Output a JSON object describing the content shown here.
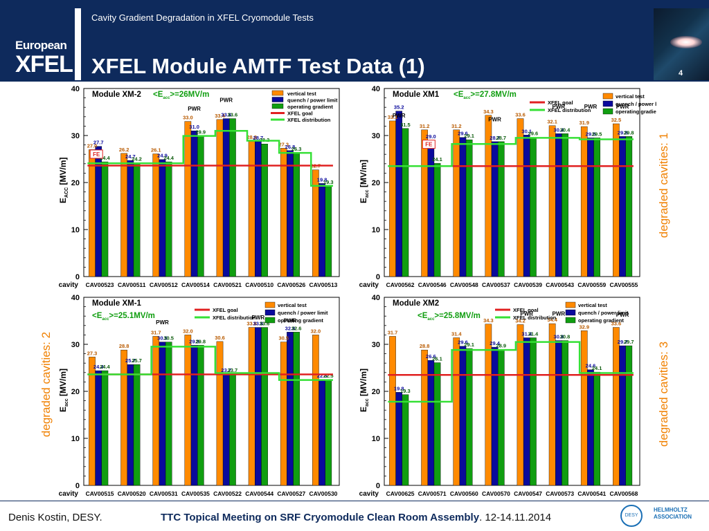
{
  "header": {
    "subtitle": "Cavity Gradient Degradation in XFEL Cryomodule Tests",
    "title": "XFEL Module AMTF Test Data (1)",
    "page_number": "4",
    "logo_top": "European",
    "logo_main": "XFEL"
  },
  "footer": {
    "author": "Denis Kostin, DESY.",
    "event_bold": "TTC Topical Meeting on SRF Cryomodule Clean Room Assembly",
    "event_rest": ". 12-14.11.2014",
    "desy_logo": "DESY",
    "helmholtz_line1": "HELMHOLTZ",
    "helmholtz_line2": "ASSOCIATION"
  },
  "side_labels": {
    "xm1": "degraded cavities: 1",
    "xm_1": "degraded cavities: 2",
    "xm2": "degraded cavities: 3"
  },
  "colors": {
    "vertical": "#ff8a00",
    "quench": "#0a0a9c",
    "operating": "#109e10",
    "goal": "#e02020",
    "distribution": "#35e035",
    "accent": "#f08000",
    "header_bg": "#0e2a5c"
  },
  "legend_labels": {
    "vertical": "vertical test",
    "quench": "quench / power limit",
    "operating": "operating gradient",
    "goal": "XFEL goal",
    "distribution": "XFEL distribution"
  },
  "chart_data": [
    {
      "type": "bar",
      "module": "Module XM-2",
      "eacc": "<E_acc>=26MV/m",
      "ylabel": "E_ACC [MV/m]",
      "xlabel": "cavity",
      "ylim": [
        0,
        40
      ],
      "yticks": [
        0,
        10,
        20,
        30,
        40
      ],
      "categories": [
        "CAV00523",
        "CAV00511",
        "CAV00512",
        "CAV00514",
        "CAV00521",
        "CAV00510",
        "CAV00526",
        "CAV00513"
      ],
      "series": [
        {
          "name": "vertical test",
          "key": "vertical",
          "values": [
            27.0,
            26.2,
            26.1,
            33.0,
            33.4,
            28.8,
            27.3,
            22.7
          ]
        },
        {
          "name": "quench / power limit",
          "key": "quench",
          "values": [
            27.7,
            24.7,
            24.9,
            31.0,
            33.6,
            28.7,
            26.8,
            19.8
          ]
        },
        {
          "name": "operating gradient",
          "key": "operating",
          "values": [
            24.4,
            24.2,
            24.4,
            29.9,
            33.6,
            28.2,
            26.3,
            19.3
          ]
        }
      ],
      "distribution": [
        24.1,
        24.1,
        24.1,
        29.9,
        31.0,
        28.9,
        26.3,
        19.3
      ],
      "goal": 23.6,
      "annotations": [
        {
          "cat": 0,
          "text": "FE",
          "box": true,
          "y": 25.6
        },
        {
          "cat": 3,
          "text": "PWR",
          "y": 35.3
        },
        {
          "cat": 4,
          "text": "PWR",
          "y": 37.1
        }
      ],
      "legend_keys": [
        "vertical",
        "quench",
        "operating",
        "goal",
        "distribution"
      ]
    },
    {
      "type": "bar",
      "module": "Module XM1",
      "eacc": "<E_acc>=27.8MV/m",
      "ylabel": "E_acc [MV/m]",
      "xlabel": "cavity",
      "ylim": [
        0,
        40
      ],
      "yticks": [
        0,
        10,
        20,
        30,
        40
      ],
      "categories": [
        "CAV00562",
        "CAV00546",
        "CAV00548",
        "CAV00537",
        "CAV00539",
        "CAV00543",
        "CAV00559",
        "CAV00555"
      ],
      "series": [
        {
          "name": "vertical test",
          "key": "vertical",
          "values": [
            33.1,
            31.2,
            31.2,
            34.3,
            33.6,
            32.1,
            31.9,
            32.5
          ]
        },
        {
          "name": "quench / power limit",
          "key": "quench",
          "values": [
            35.2,
            29.0,
            29.6,
            28.7,
            30.1,
            30.4,
            29.5,
            29.8
          ]
        },
        {
          "name": "operating gradient",
          "key": "operating",
          "values": [
            31.5,
            24.1,
            29.1,
            28.7,
            29.6,
            30.4,
            29.5,
            29.8
          ]
        }
      ],
      "distribution": [
        23.5,
        23.5,
        28.2,
        28.2,
        29.5,
        29.5,
        29.2,
        29.2
      ],
      "goal": 23.5,
      "annotations": [
        {
          "cat": 0,
          "text": "PWR",
          "y": 33.8
        },
        {
          "cat": 1,
          "text": "FE",
          "box": true,
          "y": 27.7
        },
        {
          "cat": 3,
          "text": "PWR",
          "y": 33.0
        },
        {
          "cat": 5,
          "text": "PWR",
          "y": 35.7
        },
        {
          "cat": 6,
          "text": "PWR",
          "y": 35.7
        },
        {
          "cat": 7,
          "text": "PWR",
          "y": 35.7
        }
      ],
      "legend_keys": [
        "vertical",
        "quench",
        "operating",
        "goal",
        "distribution"
      ]
    },
    {
      "type": "bar",
      "module": "Module XM-1",
      "eacc": "<E_acc>=25.1MV/m",
      "ylabel": "E_acc [MV/m]",
      "xlabel": "cavity",
      "ylim": [
        0,
        40
      ],
      "yticks": [
        0,
        10,
        20,
        30,
        40
      ],
      "categories": [
        "CAV00515",
        "CAV00520",
        "CAV00531",
        "CAV00535",
        "CAV00522",
        "CAV00544",
        "CAV00527",
        "CAV00530"
      ],
      "series": [
        {
          "name": "vertical test",
          "key": "vertical",
          "values": [
            27.3,
            28.8,
            31.7,
            32.0,
            30.6,
            33.6,
            30.5,
            32.0
          ]
        },
        {
          "name": "quench / power limit",
          "key": "quench",
          "values": [
            24.4,
            25.7,
            30.5,
            29.8,
            23.7,
            33.6,
            32.6,
            22.5
          ]
        },
        {
          "name": "operating gradient",
          "key": "operating",
          "values": [
            24.4,
            25.7,
            30.5,
            29.8,
            23.7,
            33.6,
            32.6,
            22.5
          ]
        }
      ],
      "distribution": [
        23.6,
        23.6,
        29.5,
        29.5,
        23.9,
        23.9,
        22.4,
        22.4
      ],
      "goal": 23.6,
      "annotations": [
        {
          "cat": 2,
          "text": "PWR",
          "y": 34.3
        },
        {
          "cat": 5,
          "text": "PWR",
          "y": 35.3
        },
        {
          "cat": 6,
          "text": "PWR",
          "y": 34.6
        }
      ],
      "legend_keys": [
        "goal",
        "distribution",
        "vertical",
        "quench",
        "operating"
      ]
    },
    {
      "type": "bar",
      "module": "Module XM2",
      "eacc": "<E_acc>=25.8MV/m",
      "ylabel": "E_acc [MV/m]",
      "xlabel": "cavity",
      "ylim": [
        0,
        40
      ],
      "yticks": [
        0,
        10,
        20,
        30,
        40
      ],
      "categories": [
        "CAV00625",
        "CAV00571",
        "CAV00560",
        "CAV00570",
        "CAV00547",
        "CAV00573",
        "CAV00541",
        "CAV00568"
      ],
      "series": [
        {
          "name": "vertical test",
          "key": "vertical",
          "values": [
            31.7,
            28.8,
            31.4,
            34.3,
            34.2,
            34.4,
            32.9,
            33.6
          ]
        },
        {
          "name": "quench / power limit",
          "key": "quench",
          "values": [
            19.8,
            26.6,
            29.6,
            29.4,
            31.4,
            30.8,
            24.6,
            29.7
          ]
        },
        {
          "name": "operating gradient",
          "key": "operating",
          "values": [
            19.3,
            26.1,
            29.1,
            28.9,
            31.4,
            30.8,
            24.1,
            29.7
          ]
        }
      ],
      "distribution": [
        17.8,
        17.8,
        28.8,
        28.8,
        30.5,
        30.5,
        23.9,
        23.9
      ],
      "goal": 23.5,
      "annotations": [
        {
          "cat": 4,
          "text": "PWR",
          "y": 36.1
        },
        {
          "cat": 5,
          "text": "PWR",
          "y": 36.1
        },
        {
          "cat": 7,
          "text": "PWR",
          "y": 35.9
        }
      ],
      "legend_keys": [
        "goal",
        "distribution",
        "vertical",
        "quench",
        "operating"
      ]
    }
  ]
}
